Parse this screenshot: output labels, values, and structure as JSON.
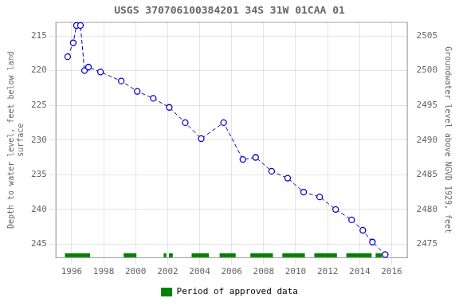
{
  "chart_data": {
    "type": "line",
    "title": "USGS 370706100384201 34S 31W 01CAA 01",
    "y_label": "Depth to water level, feet below land\nsurface",
    "y2_label": "Groundwater level above NGVD 1929, feet",
    "x": [
      1995.75,
      1996.1,
      1996.3,
      1996.55,
      1996.8,
      1997.05,
      1997.8,
      1999.1,
      2000.1,
      2001.1,
      2002.1,
      2003.1,
      2004.1,
      2005.5,
      2006.7,
      2007.5,
      2008.5,
      2009.5,
      2010.5,
      2011.5,
      2012.5,
      2013.5,
      2014.2,
      2014.8,
      2015.6
    ],
    "values": [
      218.0,
      216.0,
      213.5,
      213.5,
      220.0,
      219.5,
      220.2,
      221.5,
      223.0,
      224.0,
      225.3,
      227.5,
      229.8,
      227.5,
      232.8,
      232.5,
      234.5,
      235.5,
      237.5,
      238.2,
      240.0,
      241.5,
      243.0,
      244.7,
      246.5
    ],
    "color": "#0000cc",
    "marker": "circle",
    "line_style": "dashed",
    "spans": {
      "name": "Period of approved data",
      "color": "#008000",
      "ranges": [
        [
          1995.58,
          1997.15
        ],
        [
          1999.25,
          2000.05
        ],
        [
          2001.75,
          2001.92
        ],
        [
          2002.08,
          2002.32
        ],
        [
          2003.5,
          2004.58
        ],
        [
          2005.25,
          2006.25
        ],
        [
          2007.17,
          2008.58
        ],
        [
          2009.17,
          2010.58
        ],
        [
          2011.17,
          2012.58
        ],
        [
          2013.17,
          2014.75
        ],
        [
          2015.0,
          2015.4
        ]
      ]
    },
    "xlim": [
      1995,
      2017
    ],
    "xticks": [
      1996,
      1998,
      2000,
      2002,
      2004,
      2006,
      2008,
      2010,
      2012,
      2014,
      2016
    ],
    "ylim": [
      247,
      213
    ],
    "yticks": [
      215,
      220,
      225,
      230,
      235,
      240,
      245
    ],
    "y2lim": [
      2473,
      2507
    ],
    "y2ticks": [
      2505,
      2500,
      2495,
      2490,
      2485,
      2480,
      2475
    ],
    "grid": true,
    "legend": "bottom"
  }
}
